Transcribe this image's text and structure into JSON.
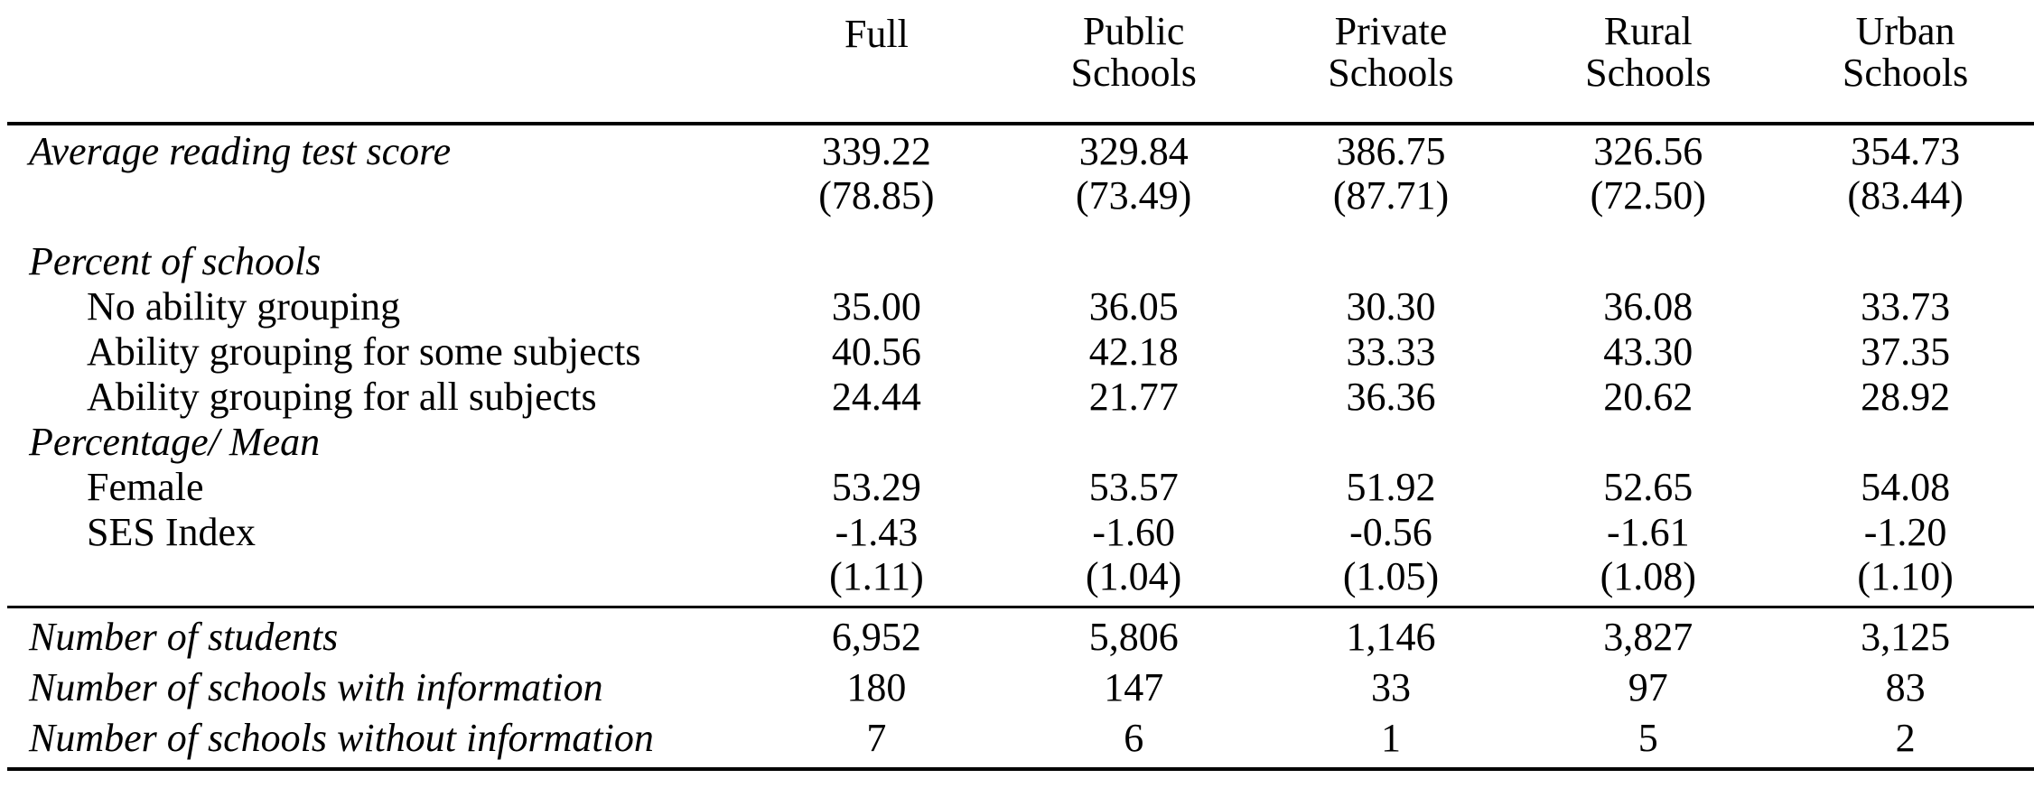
{
  "colors": {
    "text": "#000000",
    "background": "#ffffff",
    "rule": "#000000"
  },
  "table": {
    "columns": [
      "Full",
      "Public Schools",
      "Private Schools",
      "Rural Schools",
      "Urban Schools"
    ],
    "rows": [
      {
        "label": "Average reading test score",
        "italic": true,
        "indent": false,
        "gap_after": true,
        "values": [
          "339.22",
          "329.84",
          "386.75",
          "326.56",
          "354.73"
        ],
        "sd": [
          "(78.85)",
          "(73.49)",
          "(87.71)",
          "(72.50)",
          "(83.44)"
        ]
      },
      {
        "label": "Percent of schools",
        "italic": true,
        "section": true
      },
      {
        "label": "No ability grouping",
        "indent": true,
        "values": [
          "35.00",
          "36.05",
          "30.30",
          "36.08",
          "33.73"
        ]
      },
      {
        "label": "Ability grouping for some subjects",
        "indent": true,
        "values": [
          "40.56",
          "42.18",
          "33.33",
          "43.30",
          "37.35"
        ]
      },
      {
        "label": "Ability grouping for all subjects",
        "indent": true,
        "values": [
          "24.44",
          "21.77",
          "36.36",
          "20.62",
          "28.92"
        ]
      },
      {
        "label": "Percentage/ Mean",
        "italic": true,
        "section": true
      },
      {
        "label": "Female",
        "indent": true,
        "values": [
          "53.29",
          "53.57",
          "51.92",
          "52.65",
          "54.08"
        ]
      },
      {
        "label": "SES Index",
        "indent": true,
        "values": [
          "-1.43",
          "-1.60",
          "-0.56",
          "-1.61",
          "-1.20"
        ],
        "sd": [
          "(1.11)",
          "(1.04)",
          "(1.05)",
          "(1.08)",
          "(1.10)"
        ]
      }
    ],
    "footer_rows": [
      {
        "label": "Number of students",
        "values": [
          "6,952",
          "5,806",
          "1,146",
          "3,827",
          "3,125"
        ]
      },
      {
        "label": "Number of schools with information",
        "values": [
          "180",
          "147",
          "33",
          "97",
          "83"
        ]
      },
      {
        "label": "Number of schools without information",
        "values": [
          "7",
          "6",
          "1",
          "5",
          "2"
        ]
      }
    ]
  }
}
